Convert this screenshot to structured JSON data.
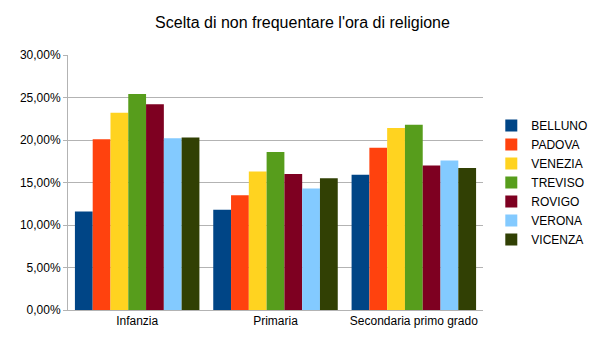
{
  "chart_data": {
    "type": "bar",
    "title": "Scelta di non frequentare l'ora di religione",
    "categories": [
      "Infanzia",
      "Primaria",
      "Secondaria primo grado"
    ],
    "series": [
      {
        "name": "BELLUNO",
        "color": "#004586",
        "values": [
          11.6,
          11.8,
          15.9
        ]
      },
      {
        "name": "PADOVA",
        "color": "#ff420e",
        "values": [
          20.1,
          13.5,
          19.1
        ]
      },
      {
        "name": "VENEZIA",
        "color": "#ffd320",
        "values": [
          23.2,
          16.3,
          21.4
        ]
      },
      {
        "name": "TREVISO",
        "color": "#579d1c",
        "values": [
          25.4,
          18.6,
          21.8
        ]
      },
      {
        "name": "ROVIGO",
        "color": "#7e0021",
        "values": [
          24.2,
          16.0,
          17.0
        ]
      },
      {
        "name": "VERONA",
        "color": "#83caff",
        "values": [
          20.2,
          14.3,
          17.6
        ]
      },
      {
        "name": "VICENZA",
        "color": "#314004",
        "values": [
          20.3,
          15.5,
          16.7
        ]
      }
    ],
    "ylim": [
      0,
      30
    ],
    "yticks": [
      {
        "value": 0,
        "label": "0,00%"
      },
      {
        "value": 5,
        "label": "5,00%"
      },
      {
        "value": 10,
        "label": "10,00%"
      },
      {
        "value": 15,
        "label": "15,00%"
      },
      {
        "value": 20,
        "label": "20,00%"
      },
      {
        "value": 25,
        "label": "25,00%"
      },
      {
        "value": 30,
        "label": "30,00%"
      }
    ],
    "grid": true,
    "legend": "right"
  }
}
